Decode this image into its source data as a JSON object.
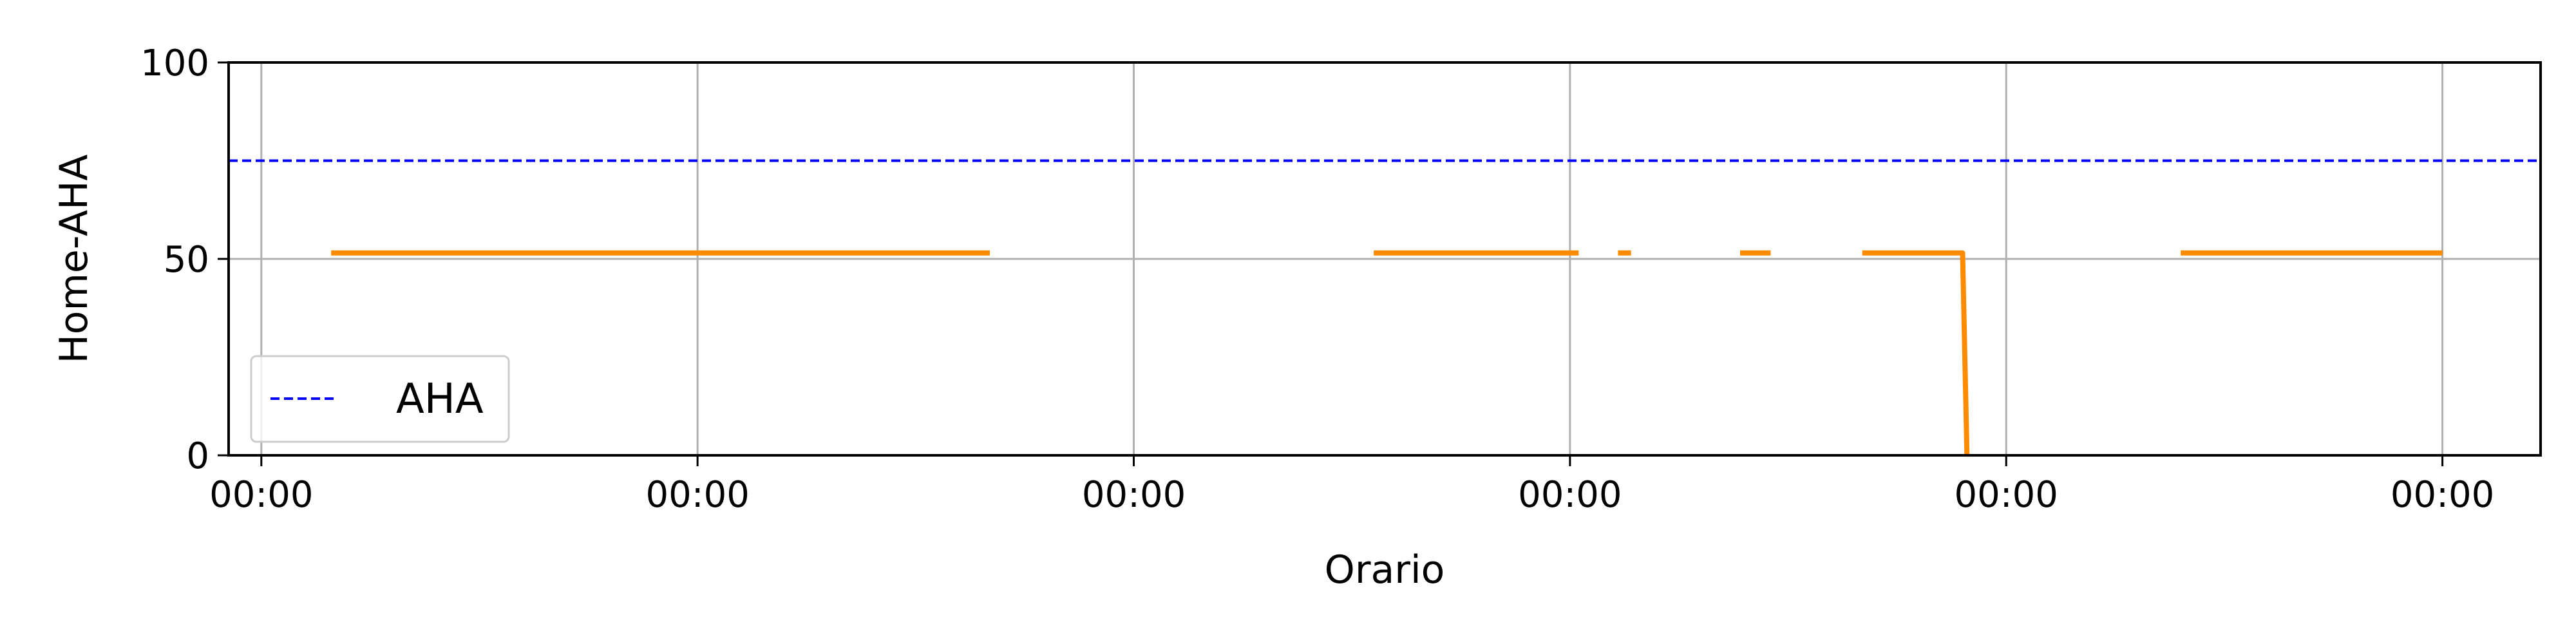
{
  "chart_data": {
    "type": "line",
    "title": "",
    "xlabel": "Orario",
    "ylabel": "Home-AHA",
    "ylim": [
      0,
      100
    ],
    "xlim": [
      -0.075,
      5.225
    ],
    "yticks": [
      0,
      50,
      100
    ],
    "xticks": [
      {
        "value": 0,
        "label": "00:00"
      },
      {
        "value": 1,
        "label": "00:00"
      },
      {
        "value": 2,
        "label": "00:00"
      },
      {
        "value": 3,
        "label": "00:00"
      },
      {
        "value": 4,
        "label": "00:00"
      },
      {
        "value": 5,
        "label": "00:00"
      }
    ],
    "grid": true,
    "legend": {
      "placement": "lower-left",
      "entries": [
        "AHA"
      ]
    },
    "series": [
      {
        "name": "AHA",
        "style": "dashed",
        "color": "#0000ff",
        "segments": [
          [
            [
              -0.075,
              75
            ],
            [
              5.225,
              75
            ]
          ]
        ]
      },
      {
        "style": "solid",
        "color": "#ff8c00",
        "segments": [
          [
            [
              0.16,
              51.5
            ],
            [
              1.67,
              51.5
            ]
          ],
          [
            [
              2.55,
              51.5
            ],
            [
              3.02,
              51.5
            ]
          ],
          [
            [
              3.11,
              51.5
            ],
            [
              3.14,
              51.5
            ]
          ],
          [
            [
              3.39,
              51.5
            ],
            [
              3.46,
              51.5
            ]
          ],
          [
            [
              3.67,
              51.5
            ],
            [
              3.9,
              51.5
            ],
            [
              3.91,
              0
            ]
          ],
          [
            [
              4.4,
              51.5
            ],
            [
              5.0,
              51.5
            ]
          ]
        ]
      }
    ]
  }
}
